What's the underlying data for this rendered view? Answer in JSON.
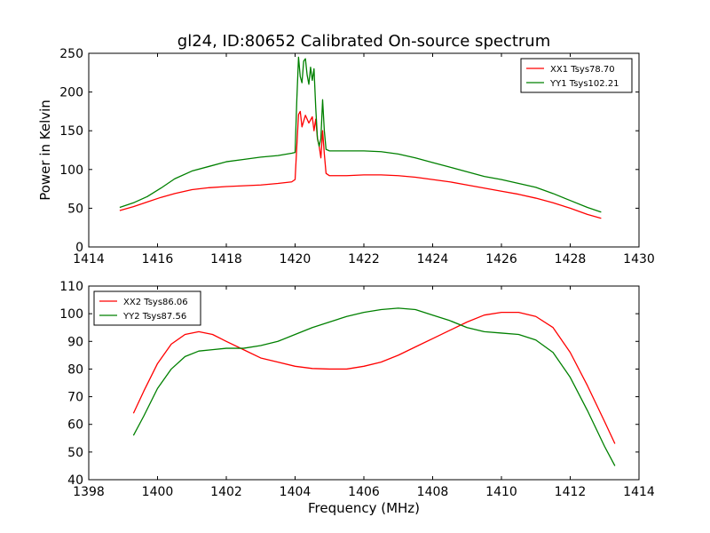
{
  "title": "gl24, ID:80652 Calibrated On-source spectrum",
  "chart_data": [
    {
      "type": "line",
      "xlabel": "",
      "ylabel": "Power in Kelvin",
      "xlim": [
        1414,
        1430
      ],
      "ylim": [
        0,
        250
      ],
      "xticks": [
        1414,
        1416,
        1418,
        1420,
        1422,
        1424,
        1426,
        1428,
        1430
      ],
      "yticks": [
        0,
        50,
        100,
        150,
        200,
        250
      ],
      "legend_position": "top-right",
      "grid": false,
      "series": [
        {
          "name": "XX1 Tsys78.70",
          "color": "#ff0000",
          "points": [
            [
              1414.9,
              47
            ],
            [
              1415.3,
              52
            ],
            [
              1415.7,
              58
            ],
            [
              1416.1,
              64
            ],
            [
              1416.5,
              69
            ],
            [
              1417,
              74
            ],
            [
              1417.5,
              76.5
            ],
            [
              1418,
              78
            ],
            [
              1418.5,
              79
            ],
            [
              1419,
              80
            ],
            [
              1419.5,
              82
            ],
            [
              1419.9,
              84
            ],
            [
              1420,
              87
            ],
            [
              1420.05,
              130
            ],
            [
              1420.1,
              171
            ],
            [
              1420.15,
              175
            ],
            [
              1420.2,
              155
            ],
            [
              1420.3,
              170
            ],
            [
              1420.4,
              160
            ],
            [
              1420.5,
              168
            ],
            [
              1420.55,
              150
            ],
            [
              1420.6,
              165
            ],
            [
              1420.65,
              140
            ],
            [
              1420.7,
              130
            ],
            [
              1420.75,
              115
            ],
            [
              1420.8,
              150
            ],
            [
              1420.85,
              120
            ],
            [
              1420.9,
              95
            ],
            [
              1421,
              92
            ],
            [
              1421.5,
              92
            ],
            [
              1422,
              93
            ],
            [
              1422.5,
              93
            ],
            [
              1423,
              92
            ],
            [
              1423.5,
              90
            ],
            [
              1424,
              87
            ],
            [
              1424.5,
              84
            ],
            [
              1425,
              80
            ],
            [
              1425.5,
              76
            ],
            [
              1426,
              72
            ],
            [
              1426.5,
              68
            ],
            [
              1427,
              63
            ],
            [
              1427.5,
              57
            ],
            [
              1428,
              50
            ],
            [
              1428.5,
              42
            ],
            [
              1428.9,
              37
            ]
          ]
        },
        {
          "name": "YY1 Tsys102.21",
          "color": "#008000",
          "points": [
            [
              1414.9,
              51
            ],
            [
              1415.3,
              57
            ],
            [
              1415.7,
              65
            ],
            [
              1416.1,
              76
            ],
            [
              1416.5,
              88
            ],
            [
              1417,
              98
            ],
            [
              1417.5,
              104
            ],
            [
              1418,
              110
            ],
            [
              1418.5,
              113
            ],
            [
              1419,
              116
            ],
            [
              1419.5,
              118
            ],
            [
              1419.9,
              121
            ],
            [
              1420,
              122
            ],
            [
              1420.05,
              190
            ],
            [
              1420.1,
              245
            ],
            [
              1420.15,
              220
            ],
            [
              1420.2,
              212
            ],
            [
              1420.25,
              240
            ],
            [
              1420.3,
              243
            ],
            [
              1420.35,
              222
            ],
            [
              1420.4,
              210
            ],
            [
              1420.45,
              232
            ],
            [
              1420.5,
              215
            ],
            [
              1420.55,
              230
            ],
            [
              1420.6,
              180
            ],
            [
              1420.65,
              140
            ],
            [
              1420.7,
              130
            ],
            [
              1420.75,
              140
            ],
            [
              1420.8,
              190
            ],
            [
              1420.85,
              150
            ],
            [
              1420.9,
              126
            ],
            [
              1421,
              124
            ],
            [
              1421.5,
              124
            ],
            [
              1422,
              124
            ],
            [
              1422.5,
              123
            ],
            [
              1423,
              120
            ],
            [
              1423.5,
              115
            ],
            [
              1424,
              109
            ],
            [
              1424.5,
              103
            ],
            [
              1425,
              97
            ],
            [
              1425.5,
              91
            ],
            [
              1426,
              87
            ],
            [
              1426.5,
              82
            ],
            [
              1427,
              77
            ],
            [
              1427.5,
              69
            ],
            [
              1428,
              60
            ],
            [
              1428.5,
              51
            ],
            [
              1428.9,
              45
            ]
          ]
        }
      ]
    },
    {
      "type": "line",
      "xlabel": "Frequency (MHz)",
      "ylabel": "",
      "xlim": [
        1398,
        1414
      ],
      "ylim": [
        40,
        110
      ],
      "xticks": [
        1398,
        1400,
        1402,
        1404,
        1406,
        1408,
        1410,
        1412,
        1414
      ],
      "yticks": [
        40,
        50,
        60,
        70,
        80,
        90,
        100,
        110
      ],
      "legend_position": "top-left",
      "grid": false,
      "series": [
        {
          "name": "XX2 Tsys86.06",
          "color": "#ff0000",
          "points": [
            [
              1399.3,
              64
            ],
            [
              1399.6,
              72
            ],
            [
              1400,
              82
            ],
            [
              1400.4,
              89
            ],
            [
              1400.8,
              92.5
            ],
            [
              1401.2,
              93.5
            ],
            [
              1401.6,
              92.5
            ],
            [
              1402,
              90
            ],
            [
              1402.5,
              87
            ],
            [
              1403,
              84
            ],
            [
              1403.5,
              82.5
            ],
            [
              1404,
              81
            ],
            [
              1404.5,
              80.2
            ],
            [
              1405,
              80
            ],
            [
              1405.5,
              80
            ],
            [
              1406,
              81
            ],
            [
              1406.5,
              82.5
            ],
            [
              1407,
              85
            ],
            [
              1407.5,
              88
            ],
            [
              1408,
              91
            ],
            [
              1408.5,
              94
            ],
            [
              1409,
              97
            ],
            [
              1409.5,
              99.5
            ],
            [
              1410,
              100.5
            ],
            [
              1410.5,
              100.5
            ],
            [
              1411,
              99
            ],
            [
              1411.5,
              95
            ],
            [
              1412,
              86
            ],
            [
              1412.5,
              74
            ],
            [
              1413,
              61
            ],
            [
              1413.3,
              53
            ]
          ]
        },
        {
          "name": "YY2 Tsys87.56",
          "color": "#008000",
          "points": [
            [
              1399.3,
              56
            ],
            [
              1399.6,
              63
            ],
            [
              1400,
              73
            ],
            [
              1400.4,
              80
            ],
            [
              1400.8,
              84.5
            ],
            [
              1401.2,
              86.5
            ],
            [
              1401.6,
              87
            ],
            [
              1402,
              87.5
            ],
            [
              1402.5,
              87.5
            ],
            [
              1403,
              88.5
            ],
            [
              1403.5,
              90
            ],
            [
              1404,
              92.5
            ],
            [
              1404.5,
              95
            ],
            [
              1405,
              97
            ],
            [
              1405.5,
              99
            ],
            [
              1406,
              100.5
            ],
            [
              1406.5,
              101.5
            ],
            [
              1407,
              102
            ],
            [
              1407.5,
              101.5
            ],
            [
              1408,
              99.5
            ],
            [
              1408.5,
              97.5
            ],
            [
              1409,
              95
            ],
            [
              1409.5,
              93.5
            ],
            [
              1410,
              93
            ],
            [
              1410.5,
              92.5
            ],
            [
              1411,
              90.5
            ],
            [
              1411.5,
              86
            ],
            [
              1412,
              77
            ],
            [
              1412.5,
              65
            ],
            [
              1413,
              52
            ],
            [
              1413.3,
              45
            ]
          ]
        }
      ]
    }
  ]
}
